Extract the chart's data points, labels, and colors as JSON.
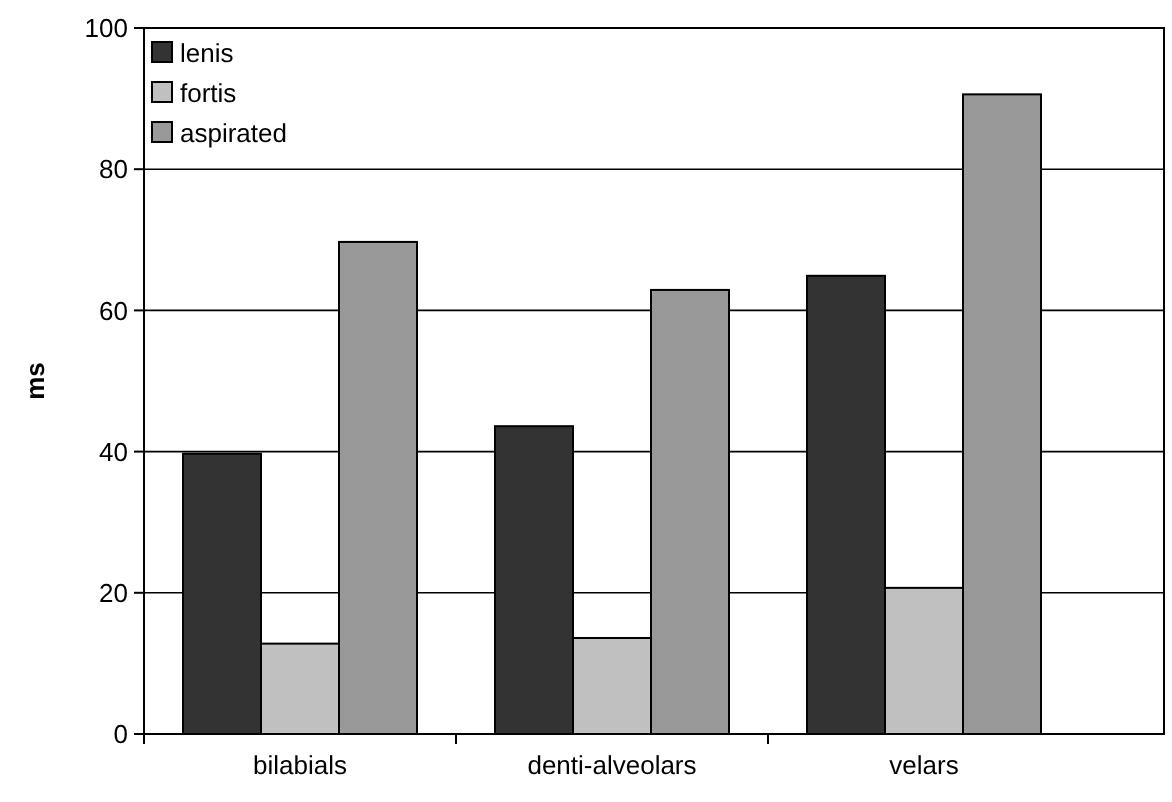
{
  "chart_data": {
    "type": "bar",
    "ylabel": "ms",
    "categories": [
      "bilabials",
      "denti-alveolars",
      "velars"
    ],
    "series": [
      {
        "name": "lenis",
        "color": "#333333",
        "values": [
          39.7,
          43.6,
          64.9
        ]
      },
      {
        "name": "fortis",
        "color": "#c0c0c0",
        "values": [
          12.8,
          13.6,
          20.7
        ]
      },
      {
        "name": "aspirated",
        "color": "#999999",
        "values": [
          69.7,
          62.9,
          90.6
        ]
      }
    ],
    "ylim": [
      0,
      100
    ],
    "yticks": [
      0,
      20,
      40,
      60,
      80,
      100
    ],
    "grid": "y",
    "legend": "top left"
  }
}
